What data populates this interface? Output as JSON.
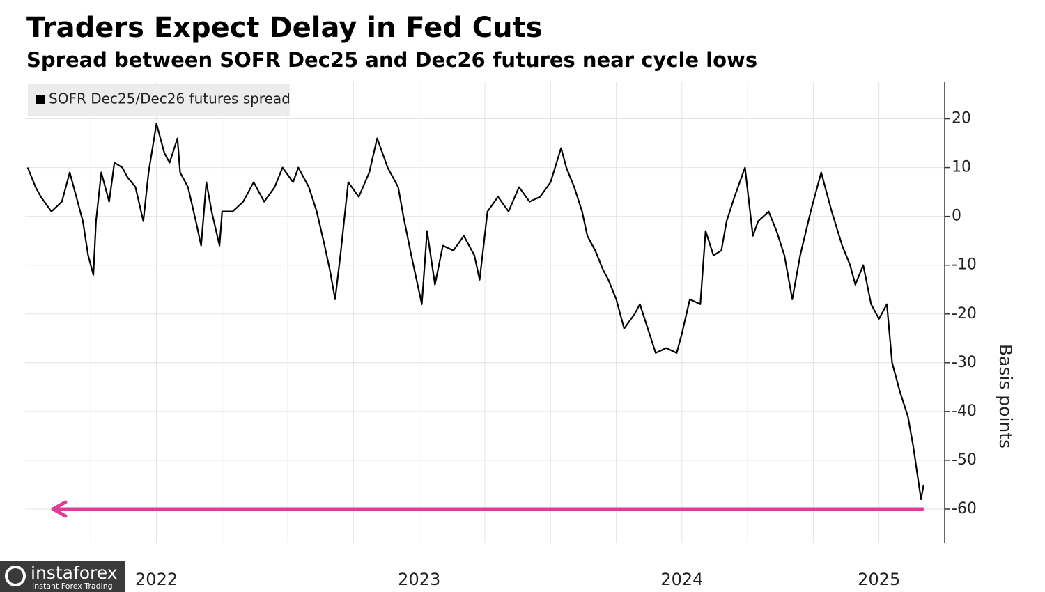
{
  "chart_data": {
    "type": "line",
    "title": "Traders Expect Delay in Fed Cuts",
    "subtitle": "Spread between SOFR Dec25 and Dec26 futures near cycle lows",
    "y_label": "Basis points",
    "x": [
      2022.01,
      2022.04,
      2022.06,
      2022.1,
      2022.14,
      2022.17,
      2022.2,
      2022.22,
      2022.24,
      2022.26,
      2022.27,
      2022.29,
      2022.32,
      2022.34,
      2022.37,
      2022.39,
      2022.42,
      2022.45,
      2022.47,
      2022.5,
      2022.53,
      2022.55,
      2022.58,
      2022.59,
      2022.62,
      2022.65,
      2022.67,
      2022.69,
      2022.71,
      2022.74,
      2022.75,
      2022.79,
      2022.83,
      2022.87,
      2022.91,
      2022.95,
      2022.98,
      2023.02,
      2023.04,
      2023.08,
      2023.11,
      2023.14,
      2023.16,
      2023.18,
      2023.2,
      2023.23,
      2023.27,
      2023.31,
      2023.34,
      2023.38,
      2023.42,
      2023.44,
      2023.47,
      2023.49,
      2023.51,
      2023.53,
      2023.56,
      2023.59,
      2023.63,
      2023.67,
      2023.71,
      2023.73,
      2023.76,
      2023.8,
      2023.84,
      2023.88,
      2023.92,
      2023.96,
      2024.0,
      2024.04,
      2024.06,
      2024.09,
      2024.12,
      2024.14,
      2024.17,
      2024.2,
      2024.22,
      2024.25,
      2024.28,
      2024.32,
      2024.34,
      2024.37,
      2024.4,
      2024.44,
      2024.48,
      2024.5,
      2024.53,
      2024.57,
      2024.59,
      2024.62,
      2024.65,
      2024.67,
      2024.7,
      2024.74,
      2024.77,
      2024.79,
      2024.83,
      2024.86,
      2024.89,
      2024.92,
      2024.95,
      2024.99,
      2025.03,
      2025.07,
      2025.11,
      2025.14,
      2025.16,
      2025.19,
      2025.22,
      2025.25,
      2025.28,
      2025.3,
      2025.33,
      2025.36,
      2025.38,
      2025.41,
      2025.42
    ],
    "series": [
      {
        "name": "SOFR Dec25/Dec26 futures spread",
        "color": "#000000",
        "values": [
          10,
          6,
          4,
          1,
          3,
          9,
          3,
          -1,
          -8,
          -12,
          -1,
          9,
          3,
          11,
          10,
          8,
          6,
          -1,
          9,
          19,
          13,
          11,
          16,
          9,
          6,
          -1,
          -6,
          7,
          1,
          -6,
          1,
          1,
          3,
          7,
          3,
          6,
          10,
          7,
          10,
          6,
          1,
          -6,
          -11,
          -17,
          -8,
          7,
          4,
          9,
          16,
          10,
          6,
          0,
          -8,
          -13,
          -18,
          -3,
          -14,
          -6,
          -7,
          -4,
          -8,
          -13,
          1,
          4,
          1,
          6,
          3,
          4,
          7,
          14,
          10,
          6,
          1,
          -4,
          -7,
          -11,
          -13,
          -17,
          -23,
          -20,
          -18,
          -23,
          -28,
          -27,
          -28,
          -24,
          -17,
          -18,
          -3,
          -8,
          -7,
          -1,
          4,
          10,
          -4,
          -1,
          1,
          -3,
          -8,
          -17,
          -8,
          1,
          9,
          1,
          -6,
          -10,
          -14,
          -10,
          -18,
          -21,
          -18,
          -30,
          -36,
          -41,
          -47,
          -58,
          -55
        ]
      }
    ],
    "xlim": [
      2022,
      2025.5
    ],
    "xticks": [
      {
        "value": 2022.5,
        "label": "2022"
      },
      {
        "value": 2023.5,
        "label": "2023"
      },
      {
        "value": 2024.5,
        "label": "2024"
      },
      {
        "value": 2025.25,
        "label": "2025"
      }
    ],
    "ylim": [
      -67,
      27.5
    ],
    "yticks": [
      -60,
      -50,
      -40,
      -30,
      -20,
      -10,
      0,
      10,
      20
    ],
    "grid": true,
    "legend": "top-left",
    "arrow": {
      "y": -60,
      "color": "#dd3d96"
    }
  },
  "watermark": {
    "brand": "instaforex",
    "tagline": "Instant Forex Trading"
  }
}
